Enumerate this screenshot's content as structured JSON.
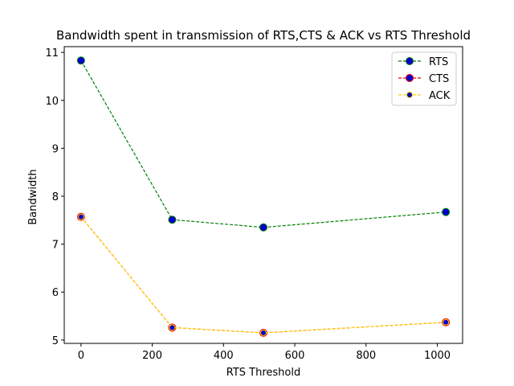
{
  "chart_data": {
    "type": "line",
    "title": "Bandwidth spent in transmission of RTS,CTS & ACK vs RTS Threshold",
    "xlabel": "RTS Threshold",
    "ylabel": "Bandwidth",
    "x": [
      0,
      256,
      512,
      1024
    ],
    "xlim": [
      -47,
      1071
    ],
    "ylim": [
      4.93,
      11.12
    ],
    "xticks": [
      0,
      200,
      400,
      600,
      800,
      1000
    ],
    "yticks": [
      5,
      6,
      7,
      8,
      9,
      10,
      11
    ],
    "grid": false,
    "legend_position": "top-right",
    "series": [
      {
        "name": "RTS",
        "values": [
          10.83,
          7.51,
          7.35,
          7.67
        ],
        "line_color": "#008000",
        "marker_face": "#0000cd",
        "marker_edge": "#008000",
        "marker_size": 4.5
      },
      {
        "name": "CTS",
        "values": [
          7.57,
          5.26,
          5.15,
          5.37
        ],
        "line_color": "#ff0000",
        "marker_face": "#0000cd",
        "marker_edge": "#ff0000",
        "marker_size": 4.5
      },
      {
        "name": "ACK",
        "values": [
          7.57,
          5.26,
          5.15,
          5.37
        ],
        "line_color": "#ffd700",
        "marker_face": "#0000cd",
        "marker_edge": "#ffd700",
        "marker_size": 3.5
      }
    ]
  }
}
